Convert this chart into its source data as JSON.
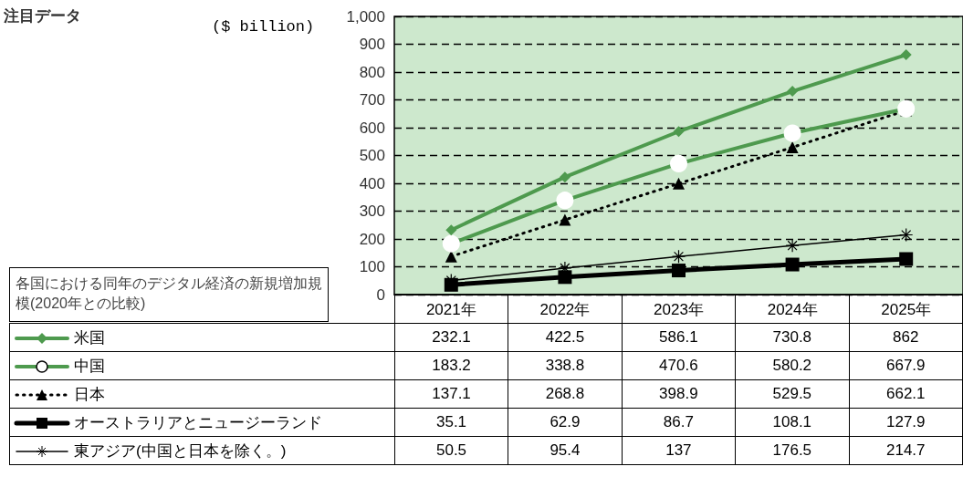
{
  "chart_data": {
    "type": "line",
    "title": "注目データ",
    "ylabel": "($ billion)",
    "legend_title": "各国における同年のデジタル経済の新規増加規模(2020年との比較)",
    "categories": [
      "2021年",
      "2022年",
      "2023年",
      "2024年",
      "2025年"
    ],
    "series": [
      {
        "name": "米国",
        "color": "#4e9a4e",
        "marker": "diamond",
        "line_style": "solid",
        "values": [
          232.1,
          422.5,
          586.1,
          730.8,
          862
        ]
      },
      {
        "name": "中国",
        "color": "#4e9a4e",
        "marker": "circle",
        "line_style": "solid",
        "values": [
          183.2,
          338.8,
          470.6,
          580.2,
          667.9
        ]
      },
      {
        "name": "日本",
        "color": "#000000",
        "marker": "triangle",
        "line_style": "dotted",
        "values": [
          137.1,
          268.8,
          398.9,
          529.5,
          662.1
        ]
      },
      {
        "name": "オーストラリアとニュージーランド",
        "color": "#000000",
        "marker": "square",
        "line_style": "solid",
        "values": [
          35.1,
          62.9,
          86.7,
          108.1,
          127.9
        ]
      },
      {
        "name": "東アジア(中国と日本を除く。)",
        "color": "#000000",
        "marker": "cross",
        "line_style": "solid",
        "values": [
          50.5,
          95.4,
          137,
          176.5,
          214.7
        ]
      }
    ],
    "ylim": [
      0,
      1000
    ],
    "yticks": [
      0,
      100,
      200,
      300,
      400,
      500,
      600,
      700,
      800,
      900,
      {
        "value": 1000,
        "label": "1,000"
      }
    ],
    "grid": "y",
    "legend": "bottom",
    "data_labels": true
  }
}
